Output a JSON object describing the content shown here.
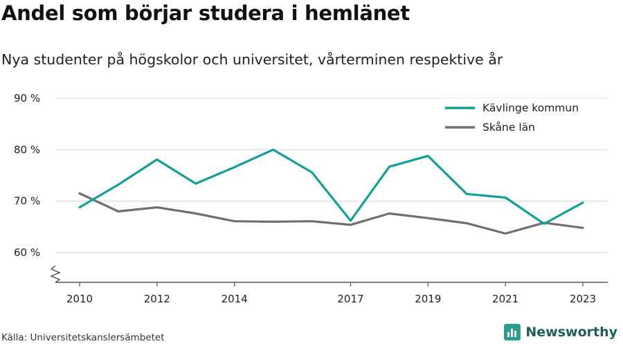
{
  "title": "Andel som börjar studera i hemlänet",
  "subtitle": "Nya studenter på högskolor och universitet, vårterminen respektive år",
  "source": "Källa: Universitetskanslersämbetet",
  "brand": {
    "name": "Newsworthy",
    "icon": "bar-chart-icon",
    "color": "#2e9c8b"
  },
  "chart_data": {
    "type": "line",
    "x": [
      2010,
      2011,
      2012,
      2013,
      2014,
      2015,
      2016,
      2017,
      2018,
      2019,
      2020,
      2021,
      2022,
      2023
    ],
    "x_tick_labels": [
      "2010",
      "2012",
      "2014",
      "2017",
      "2019",
      "2021",
      "2023"
    ],
    "y_tick_labels": [
      "60 %",
      "70 %",
      "80 %",
      "90 %"
    ],
    "y_ticks": [
      60,
      70,
      80,
      90
    ],
    "ylim": [
      55,
      90
    ],
    "y_axis_break": true,
    "grid": true,
    "legend_position": "top-right",
    "series": [
      {
        "name": "Kävlinge kommun",
        "color": "#12a095",
        "values": [
          68.8,
          73.2,
          78.1,
          73.4,
          76.6,
          80.0,
          75.6,
          66.2,
          76.7,
          78.8,
          71.4,
          70.7,
          65.6,
          69.7
        ]
      },
      {
        "name": "Skåne län",
        "color": "#6e6e73",
        "values": [
          71.5,
          68.0,
          68.8,
          67.6,
          66.1,
          66.0,
          66.1,
          65.4,
          67.6,
          66.7,
          65.7,
          63.7,
          65.8,
          64.8
        ]
      }
    ]
  }
}
